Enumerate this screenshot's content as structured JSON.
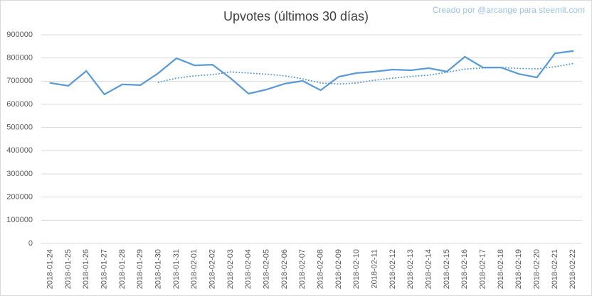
{
  "chart_data": {
    "type": "line",
    "title": "Upvotes (últimos 30 días)",
    "credit": "Creado por @arcange para steemit.com",
    "categories": [
      "2018-01-24",
      "2018-01-25",
      "2018-01-26",
      "2018-01-27",
      "2018-01-28",
      "2018-01-29",
      "2018-01-30",
      "2018-01-31",
      "2018-02-01",
      "2018-02-02",
      "2018-02-03",
      "2018-02-04",
      "2018-02-05",
      "2018-02-06",
      "2018-02-07",
      "2018-02-08",
      "2018-02-09",
      "2018-02-10",
      "2018-02-11",
      "2018-02-12",
      "2018-02-13",
      "2018-02-14",
      "2018-02-15",
      "2018-02-16",
      "2018-02-17",
      "2018-02-18",
      "2018-02-19",
      "2018-02-20",
      "2018-02-21",
      "2018-02-22"
    ],
    "series": [
      {
        "color": "#5b9bd5",
        "style": "solid",
        "values": [
          692000,
          680000,
          744000,
          643000,
          686000,
          683000,
          735000,
          799000,
          768000,
          771000,
          713000,
          646000,
          664000,
          689000,
          701000,
          661000,
          719000,
          735000,
          741000,
          750000,
          747000,
          756000,
          741000,
          805000,
          759000,
          759000,
          731000,
          716000,
          820000,
          830000
        ]
      },
      {
        "color": "#5b9bd5",
        "style": "dotted",
        "values": [
          null,
          null,
          null,
          null,
          null,
          null,
          695000,
          713000,
          723000,
          728000,
          740000,
          735000,
          730000,
          723000,
          710000,
          692000,
          688000,
          692000,
          704000,
          713000,
          720000,
          726000,
          738000,
          752000,
          757000,
          759000,
          755000,
          753000,
          762000,
          776000
        ]
      }
    ],
    "ylim": [
      0,
      900000
    ],
    "yticks": [
      0,
      100000,
      200000,
      300000,
      400000,
      500000,
      600000,
      700000,
      800000,
      900000
    ],
    "grid": true
  }
}
